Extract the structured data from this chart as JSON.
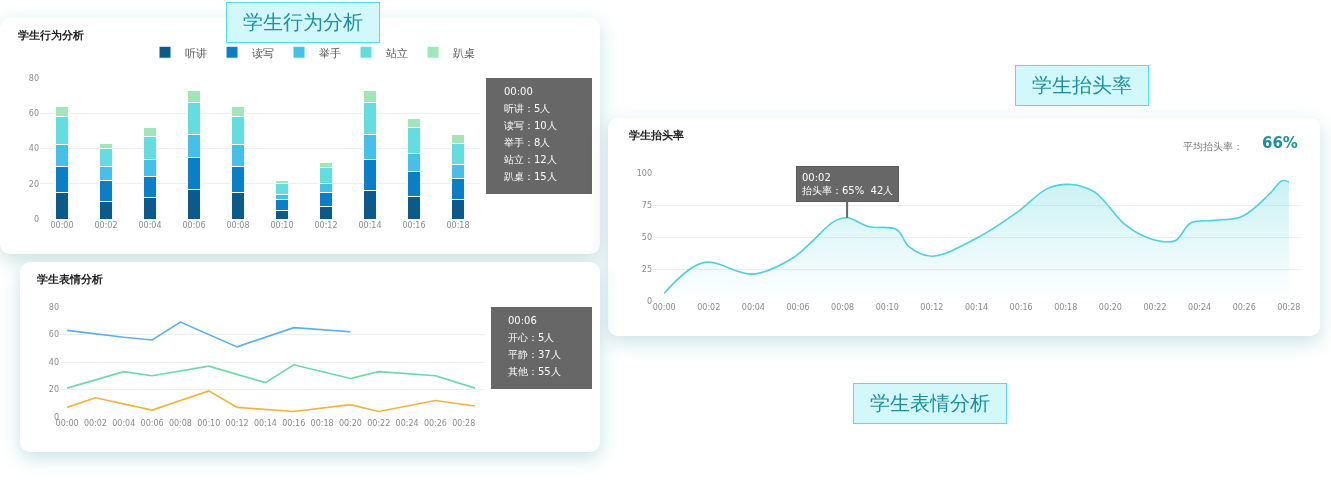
{
  "chart_data": [
    {
      "type": "bar",
      "title": "学生行为分析",
      "categories": [
        "00:00",
        "00:02",
        "00:04",
        "00:06",
        "00:08",
        "00:10",
        "00:12",
        "00:14",
        "00:16",
        "00:18"
      ],
      "stacked": true,
      "legend": "top right",
      "grid": "y",
      "ylim": [
        0,
        80
      ],
      "yticks": [
        0,
        20,
        40,
        60,
        80
      ],
      "series": [
        {
          "name": "听讲",
          "color": "#0a5a8c",
          "values": [
            15,
            10,
            12,
            17,
            15,
            5,
            7,
            16,
            13,
            11
          ]
        },
        {
          "name": "读写",
          "color": "#0a7fc8",
          "values": [
            15,
            12,
            12,
            18,
            15,
            6,
            8,
            18,
            14,
            12
          ]
        },
        {
          "name": "举手",
          "color": "#45c0e8",
          "values": [
            12,
            8,
            10,
            13,
            12,
            3,
            5,
            14,
            10,
            8
          ]
        },
        {
          "name": "站立",
          "color": "#62dde0",
          "values": [
            16,
            10,
            13,
            18,
            16,
            6,
            9,
            18,
            15,
            12
          ]
        },
        {
          "name": "趴桌",
          "color": "#9fe6b8",
          "values": [
            6,
            3,
            5,
            7,
            6,
            2,
            3,
            7,
            5,
            5
          ]
        }
      ],
      "annotations": [
        "学生行为分析",
        "00:00",
        "听讲：5人",
        "读写：10人",
        "举手：8人",
        "站立：12人",
        "趴桌：15人"
      ]
    },
    {
      "type": "area",
      "title": "学生抬头率",
      "grid": "y",
      "xlim": [
        -0.5,
        28.5
      ],
      "ylim": [
        0,
        100
      ],
      "yticks": [
        0,
        25,
        50,
        75,
        100
      ],
      "xticks": [
        {
          "value": 0,
          "label": "00:00"
        },
        {
          "value": 2,
          "label": "00:02"
        },
        {
          "value": 4,
          "label": "00:04"
        },
        {
          "value": 6,
          "label": "00:06"
        },
        {
          "value": 8,
          "label": "00:08"
        },
        {
          "value": 10,
          "label": "00:10"
        },
        {
          "value": 12,
          "label": "00:12"
        },
        {
          "value": 14,
          "label": "00:14"
        },
        {
          "value": 16,
          "label": "00:16"
        },
        {
          "value": 18,
          "label": "00:18"
        },
        {
          "value": 20,
          "label": "00:20"
        },
        {
          "value": 22,
          "label": "00:22"
        },
        {
          "value": 24,
          "label": "00:24"
        },
        {
          "value": 26,
          "label": "00:26"
        },
        {
          "value": 28,
          "label": "00:28"
        }
      ],
      "series": [
        {
          "color": "#4fd1d9",
          "x": [
            0,
            1.75,
            4,
            5.8,
            6.6,
            7.6,
            8.2,
            9.2,
            10.4,
            11,
            12,
            14,
            15.8,
            17.2,
            18.25,
            19.3,
            20.7,
            21.9,
            22.9,
            23.6,
            24.7,
            25.9,
            27.1,
            27.7,
            28
          ],
          "values": [
            6,
            30,
            21,
            34,
            46,
            62,
            65,
            58,
            56,
            42,
            35,
            49,
            69,
            88,
            91,
            85,
            59,
            48,
            47,
            61,
            63,
            66,
            83,
            94,
            93
          ]
        }
      ],
      "annotations": [
        "学生抬头率",
        "平均抬头率：",
        "66%",
        {
          "text": "00:02\n抬头率：65%  42人",
          "x": 8.2,
          "y": 65
        }
      ]
    },
    {
      "type": "line",
      "title": "学生表情分析",
      "grid": "y",
      "xlim": [
        -0.5,
        29.5
      ],
      "ylim": [
        0,
        80
      ],
      "yticks": [
        0,
        20,
        40,
        60,
        80
      ],
      "xticks": [
        {
          "value": 0,
          "label": "00:00"
        },
        {
          "value": 2,
          "label": "00:02"
        },
        {
          "value": 4,
          "label": "00:04"
        },
        {
          "value": 6,
          "label": "00:06"
        },
        {
          "value": 8,
          "label": "00:08"
        },
        {
          "value": 10,
          "label": "00:10"
        },
        {
          "value": 12,
          "label": "00:12"
        },
        {
          "value": 14,
          "label": "00:14"
        },
        {
          "value": 16,
          "label": "00:16"
        },
        {
          "value": 18,
          "label": "00:18"
        },
        {
          "value": 20,
          "label": "00:20"
        },
        {
          "value": 22,
          "label": "00:22"
        },
        {
          "value": 24,
          "label": "00:24"
        },
        {
          "value": 26,
          "label": "00:26"
        },
        {
          "value": 28,
          "label": "00:28"
        }
      ],
      "series": [
        {
          "color": "#5aaef5",
          "x": [
            0,
            4,
            6,
            8,
            12,
            16,
            20
          ],
          "values": [
            63,
            58,
            56,
            69,
            51,
            65,
            62
          ]
        },
        {
          "color": "#6dd8a8",
          "x": [
            0,
            4,
            6,
            10,
            14,
            16,
            20,
            22,
            26,
            28.8
          ],
          "values": [
            21,
            33,
            30,
            37,
            25,
            38,
            28,
            33,
            30,
            21
          ]
        },
        {
          "color": "#f2b33d",
          "x": [
            0,
            2,
            6,
            10,
            12,
            16,
            20,
            22,
            26,
            28.8
          ],
          "values": [
            7,
            14,
            5,
            19,
            7,
            4,
            9,
            4,
            12,
            8
          ]
        }
      ],
      "annotations": [
        "学生表情分析",
        "00:06",
        "开心：5人",
        "平静：37人",
        "其他：55人"
      ]
    }
  ]
}
